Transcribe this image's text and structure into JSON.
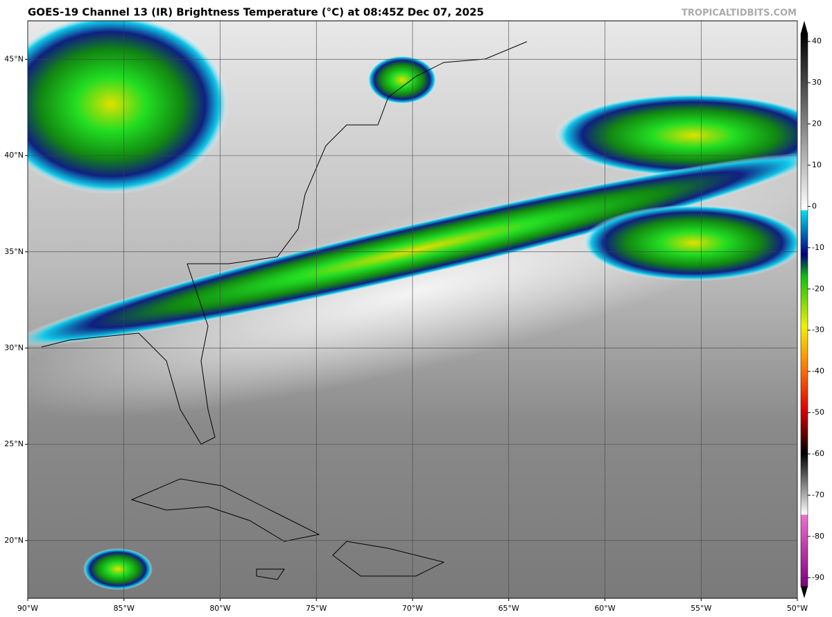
{
  "header": {
    "title": "GOES-19 Channel 13 (IR) Brightness Temperature (°C) at 08:45Z Dec 07, 2025",
    "credit": "TROPICALTIDBITS.COM"
  },
  "map": {
    "lonlim": [
      -90,
      -50
    ],
    "latlim": [
      17,
      47
    ],
    "lon_ticks": [
      {
        "value": -90,
        "label": "90°W"
      },
      {
        "value": -85,
        "label": "85°W"
      },
      {
        "value": -80,
        "label": "80°W"
      },
      {
        "value": -75,
        "label": "75°W"
      },
      {
        "value": -70,
        "label": "70°W"
      },
      {
        "value": -65,
        "label": "65°W"
      },
      {
        "value": -60,
        "label": "60°W"
      },
      {
        "value": -55,
        "label": "55°W"
      },
      {
        "value": -50,
        "label": "50°W"
      }
    ],
    "lat_ticks": [
      {
        "value": 20,
        "label": "20°N"
      },
      {
        "value": 25,
        "label": "25°N"
      },
      {
        "value": 30,
        "label": "30°N"
      },
      {
        "value": 35,
        "label": "35°N"
      },
      {
        "value": 40,
        "label": "40°N"
      },
      {
        "value": 45,
        "label": "45°N"
      }
    ]
  },
  "colorbar": {
    "lim": [
      -95,
      45
    ],
    "ticks": [
      40,
      30,
      20,
      10,
      0,
      -10,
      -20,
      -30,
      -40,
      -50,
      -60,
      -70,
      -80,
      -90
    ]
  }
}
